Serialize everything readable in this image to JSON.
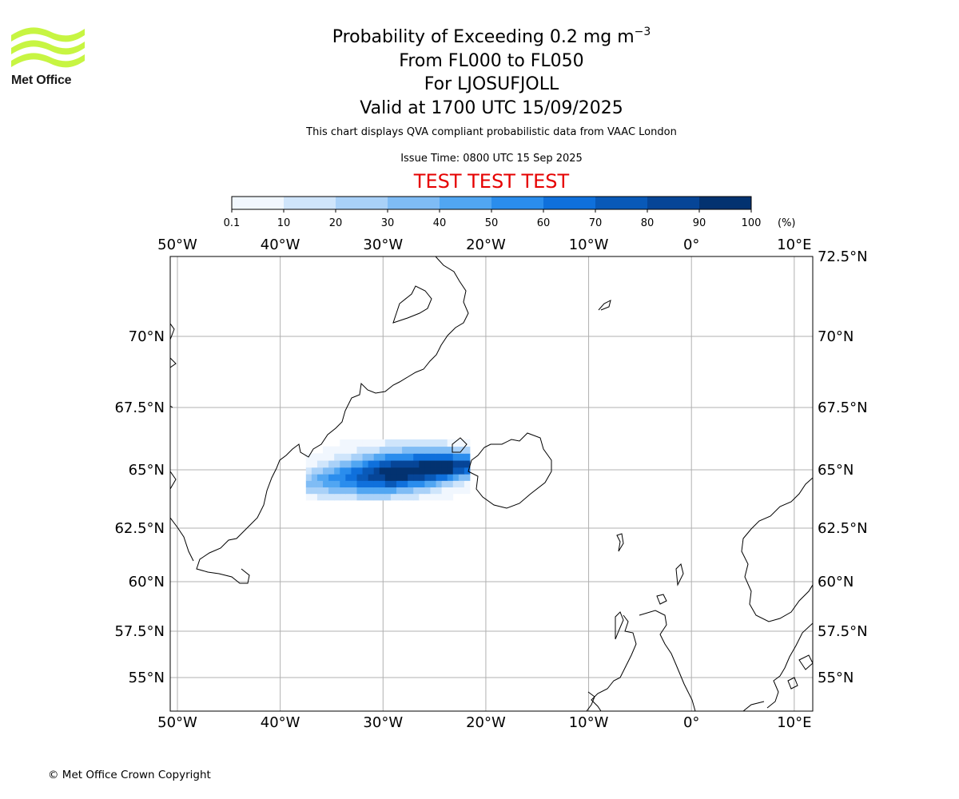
{
  "logo": {
    "name": "met-office-logo",
    "text": "Met Office",
    "color": "#c7f542"
  },
  "title": {
    "main": "Probability of Exceeding 0.2 mg m",
    "main_sup": "−3",
    "levels": "From FL000 to FL050",
    "location": "For LJOSUFJOLL",
    "valid": "Valid at 1700 UTC 15/09/2025"
  },
  "description": "This chart displays QVA compliant probabilistic data from VAAC London",
  "issue_time": "Issue Time: 0800 UTC 15 Sep 2025",
  "test_banner": "TEST TEST TEST",
  "colorbar": {
    "ticks": [
      "0.1",
      "10",
      "20",
      "30",
      "40",
      "50",
      "60",
      "70",
      "80",
      "90",
      "100"
    ],
    "unit": "(%)",
    "colors": [
      "#f1f7fe",
      "#cfe5fb",
      "#a9d1f8",
      "#7fbcf5",
      "#51a6f2",
      "#2a8ded",
      "#0f70dc",
      "#0959b8",
      "#064597",
      "#033270"
    ]
  },
  "map": {
    "lon_labels": [
      "50°W",
      "40°W",
      "30°W",
      "20°W",
      "10°W",
      "0°",
      "10°E"
    ],
    "lon_values": [
      -50,
      -40,
      -30,
      -20,
      -10,
      0,
      10
    ],
    "lat_labels_left": [
      "70°N",
      "67.5°N",
      "65°N",
      "62.5°N",
      "60°N",
      "57.5°N",
      "55°N"
    ],
    "lat_labels_right": [
      "72.5°N",
      "70°N",
      "67.5°N",
      "65°N",
      "62.5°N",
      "60°N",
      "57.5°N",
      "55°N"
    ],
    "lat_values_left": [
      70,
      67.5,
      65,
      62.5,
      60,
      57.5,
      55
    ],
    "lat_values_right": [
      72.5,
      70,
      67.5,
      65,
      62.5,
      60,
      57.5,
      55
    ],
    "extent": {
      "lon_min": -50.7,
      "lon_max": 11.8,
      "lat_min": 53.6,
      "lat_max": 72.5
    },
    "grid_color": "#b0b0b0"
  },
  "footer": "© Met Office Crown Copyright"
}
